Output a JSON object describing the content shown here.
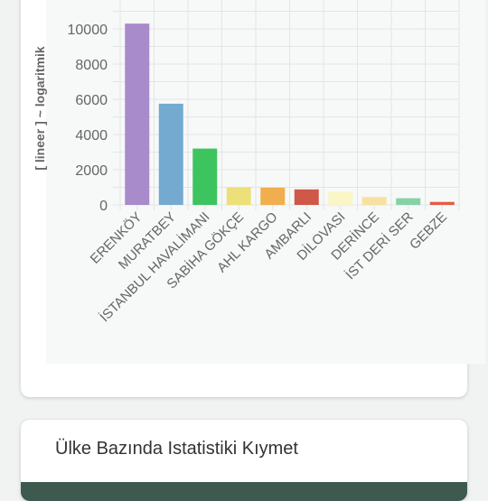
{
  "chart_data": {
    "type": "bar",
    "ylabel": "[ lineer ] ~ logaritmik",
    "yticks": [
      0,
      2000,
      4000,
      6000,
      8000,
      10000
    ],
    "ylim": [
      0,
      11000
    ],
    "categories": [
      "ERENKÖY",
      "MURATBEY",
      "İSTANBUL HAVALİMANI",
      "SABİHA GÖKÇE",
      "AHL KARGO",
      "AMBARLI",
      "DİLOVASI",
      "DERİNCE",
      "İST DERİ SER",
      "GEBZE"
    ],
    "values": [
      10300,
      5750,
      3200,
      1000,
      980,
      880,
      740,
      450,
      380,
      170
    ],
    "colors": [
      "#a78bcb",
      "#74aacf",
      "#3dc45e",
      "#ede07a",
      "#f0ae4f",
      "#cf5848",
      "#fbf6c6",
      "#f8e1a0",
      "#86d2a5",
      "#e65a3f"
    ],
    "grid": true
  },
  "stats_card": {
    "title": "Ülke Bazında Istatistiki Kıymet"
  }
}
